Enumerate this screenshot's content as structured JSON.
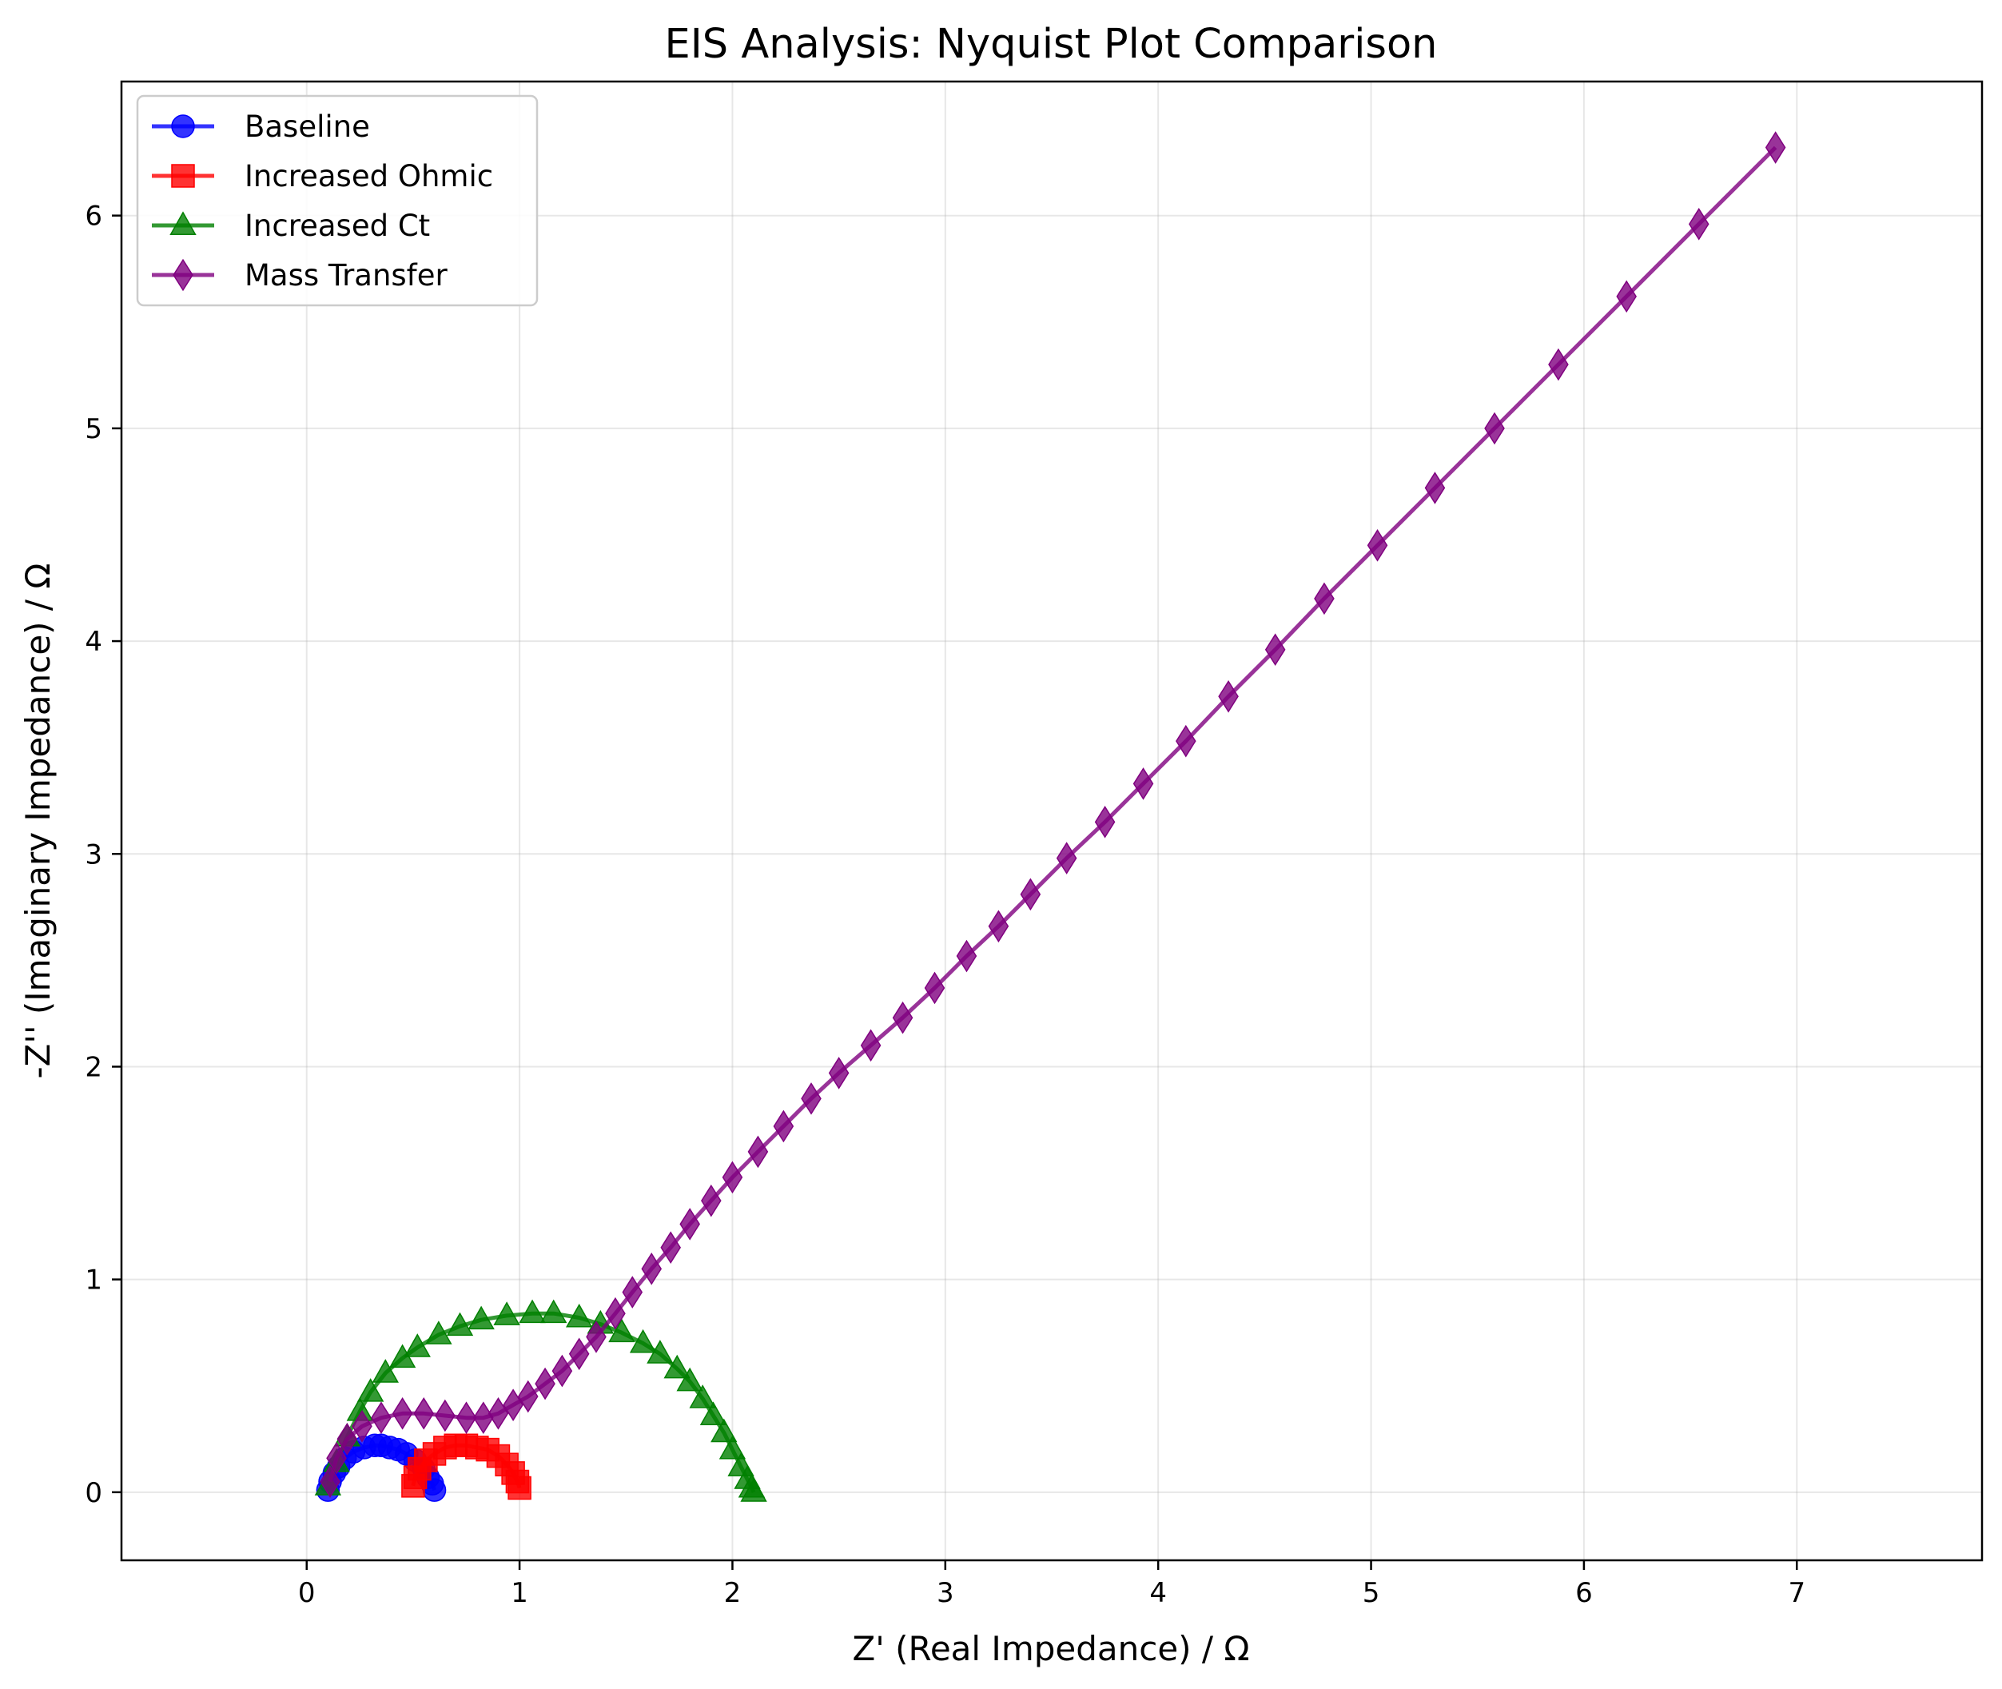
{
  "chart_data": {
    "type": "line",
    "title": "EIS Analysis: Nyquist Plot Comparison",
    "xlabel": "Z' (Real Impedance) / Ω",
    "ylabel": "-Z'' (Imaginary Impedance) / Ω",
    "xlim": [
      -0.87,
      7.87
    ],
    "ylim": [
      -0.32,
      6.63
    ],
    "x_ticks": [
      "0",
      "1",
      "2",
      "3",
      "4",
      "5",
      "6",
      "7"
    ],
    "y_ticks": [
      "0",
      "1",
      "2",
      "3",
      "4",
      "5",
      "6"
    ],
    "grid": true,
    "legend_position": "top-left",
    "series": [
      {
        "name": "Baseline",
        "color": "#0000ff",
        "marker": "circle",
        "points": [
          [
            0.1,
            0.01
          ],
          [
            0.11,
            0.05
          ],
          [
            0.13,
            0.09
          ],
          [
            0.15,
            0.12
          ],
          [
            0.18,
            0.16
          ],
          [
            0.22,
            0.19
          ],
          [
            0.27,
            0.21
          ],
          [
            0.32,
            0.22
          ],
          [
            0.35,
            0.22
          ],
          [
            0.39,
            0.21
          ],
          [
            0.43,
            0.2
          ],
          [
            0.47,
            0.18
          ],
          [
            0.51,
            0.15
          ],
          [
            0.55,
            0.11
          ],
          [
            0.57,
            0.07
          ],
          [
            0.59,
            0.04
          ],
          [
            0.6,
            0.01
          ]
        ]
      },
      {
        "name": "Increased Ohmic",
        "color": "#ff0000",
        "marker": "square",
        "points": [
          [
            0.5,
            0.03
          ],
          [
            0.51,
            0.07
          ],
          [
            0.53,
            0.11
          ],
          [
            0.56,
            0.15
          ],
          [
            0.6,
            0.18
          ],
          [
            0.65,
            0.21
          ],
          [
            0.7,
            0.22
          ],
          [
            0.75,
            0.22
          ],
          [
            0.8,
            0.21
          ],
          [
            0.85,
            0.2
          ],
          [
            0.9,
            0.17
          ],
          [
            0.94,
            0.13
          ],
          [
            0.97,
            0.09
          ],
          [
            0.99,
            0.05
          ],
          [
            1.0,
            0.02
          ]
        ]
      },
      {
        "name": "Increased Ct",
        "color": "#008000",
        "marker": "triangle",
        "points": [
          [
            0.1,
            0.03
          ],
          [
            0.14,
            0.14
          ],
          [
            0.19,
            0.26
          ],
          [
            0.25,
            0.38
          ],
          [
            0.3,
            0.47
          ],
          [
            0.37,
            0.56
          ],
          [
            0.45,
            0.63
          ],
          [
            0.52,
            0.68
          ],
          [
            0.62,
            0.74
          ],
          [
            0.72,
            0.78
          ],
          [
            0.82,
            0.81
          ],
          [
            0.94,
            0.83
          ],
          [
            1.06,
            0.84
          ],
          [
            1.16,
            0.84
          ],
          [
            1.28,
            0.82
          ],
          [
            1.38,
            0.79
          ],
          [
            1.48,
            0.75
          ],
          [
            1.58,
            0.7
          ],
          [
            1.66,
            0.65
          ],
          [
            1.74,
            0.58
          ],
          [
            1.8,
            0.52
          ],
          [
            1.86,
            0.44
          ],
          [
            1.91,
            0.36
          ],
          [
            1.96,
            0.28
          ],
          [
            2.0,
            0.2
          ],
          [
            2.04,
            0.12
          ],
          [
            2.07,
            0.06
          ],
          [
            2.09,
            0.02
          ],
          [
            2.1,
            0.0
          ]
        ]
      },
      {
        "name": "Mass Transfer",
        "color": "#800080",
        "marker": "diamond",
        "points": [
          [
            0.11,
            0.05
          ],
          [
            0.14,
            0.16
          ],
          [
            0.19,
            0.25
          ],
          [
            0.26,
            0.31
          ],
          [
            0.35,
            0.35
          ],
          [
            0.45,
            0.37
          ],
          [
            0.55,
            0.37
          ],
          [
            0.65,
            0.36
          ],
          [
            0.75,
            0.35
          ],
          [
            0.83,
            0.35
          ],
          [
            0.9,
            0.37
          ],
          [
            0.97,
            0.41
          ],
          [
            1.04,
            0.45
          ],
          [
            1.12,
            0.51
          ],
          [
            1.2,
            0.57
          ],
          [
            1.28,
            0.65
          ],
          [
            1.36,
            0.73
          ],
          [
            1.45,
            0.84
          ],
          [
            1.53,
            0.94
          ],
          [
            1.62,
            1.05
          ],
          [
            1.71,
            1.15
          ],
          [
            1.8,
            1.26
          ],
          [
            1.9,
            1.37
          ],
          [
            2.0,
            1.48
          ],
          [
            2.12,
            1.6
          ],
          [
            2.24,
            1.72
          ],
          [
            2.37,
            1.85
          ],
          [
            2.5,
            1.97
          ],
          [
            2.65,
            2.1
          ],
          [
            2.8,
            2.23
          ],
          [
            2.95,
            2.37
          ],
          [
            3.1,
            2.52
          ],
          [
            3.25,
            2.66
          ],
          [
            3.4,
            2.81
          ],
          [
            3.57,
            2.98
          ],
          [
            3.75,
            3.15
          ],
          [
            3.93,
            3.33
          ],
          [
            4.13,
            3.53
          ],
          [
            4.33,
            3.74
          ],
          [
            4.55,
            3.96
          ],
          [
            4.78,
            4.2
          ],
          [
            5.03,
            4.45
          ],
          [
            5.3,
            4.72
          ],
          [
            5.58,
            5.0
          ],
          [
            5.88,
            5.3
          ],
          [
            6.2,
            5.62
          ],
          [
            6.54,
            5.96
          ],
          [
            6.9,
            6.32
          ]
        ]
      }
    ]
  }
}
